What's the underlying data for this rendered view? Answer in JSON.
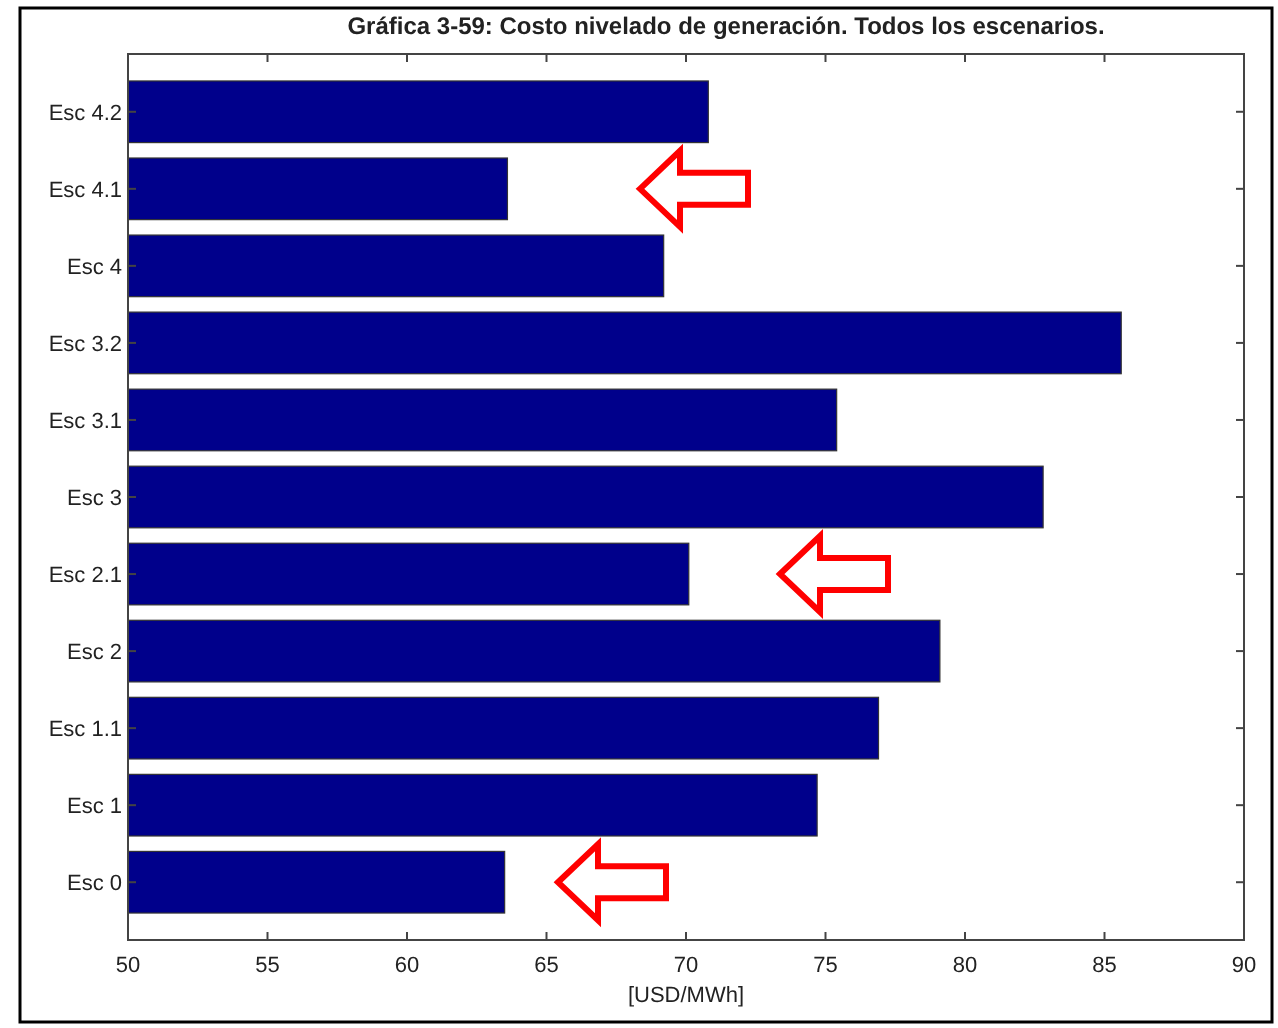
{
  "chart_data": {
    "type": "bar",
    "orientation": "horizontal",
    "title": "Gráfica 3-59: Costo nivelado de generación. Todos los escenarios.",
    "xlabel": "[USD/MWh]",
    "categories": [
      "Esc 4.2",
      "Esc 4.1",
      "Esc 4",
      "Esc 3.2",
      "Esc 3.1",
      "Esc 3",
      "Esc 2.1",
      "Esc 2",
      "Esc 1.1",
      "Esc 1",
      "Esc 0"
    ],
    "values": [
      70.8,
      63.6,
      69.2,
      85.6,
      75.4,
      82.8,
      70.1,
      79.1,
      76.9,
      74.7,
      63.5
    ],
    "color": "#00008b",
    "xlim": [
      50,
      90
    ],
    "xticks": [
      50,
      55,
      60,
      65,
      70,
      75,
      80,
      85,
      90
    ],
    "grid": false
  }
}
